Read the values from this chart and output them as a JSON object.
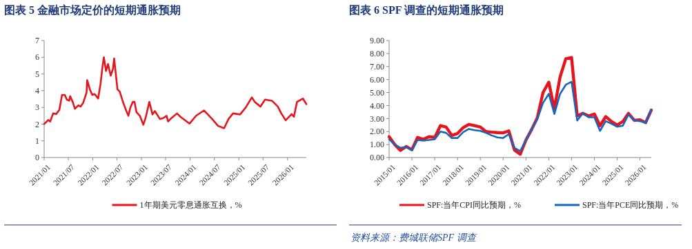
{
  "chart_data": [
    {
      "type": "line",
      "title": "图表 5   金融市场定价的短期通胀预期",
      "legend": "bottom",
      "grid": false,
      "xlim": [
        "2021-01-01",
        "2026-05-22"
      ],
      "xticks": [
        {
          "value": "2021-01",
          "label": "2021/01"
        },
        {
          "value": "2021-07",
          "label": "2021/07"
        },
        {
          "value": "2022-01",
          "label": "2022/01"
        },
        {
          "value": "2022-07",
          "label": "2022/07"
        },
        {
          "value": "2023-01",
          "label": "2023/01"
        },
        {
          "value": "2023-07",
          "label": "2023/07"
        },
        {
          "value": "2024-01",
          "label": "2024/01"
        },
        {
          "value": "2024-07",
          "label": "2024/07"
        },
        {
          "value": "2025-01",
          "label": "2025/01"
        },
        {
          "value": "2025-07",
          "label": "2025/07"
        },
        {
          "value": "2026-01",
          "label": "2026/01"
        }
      ],
      "ylim": [
        0,
        7
      ],
      "yticks": [
        0,
        1,
        2,
        3,
        4,
        5,
        6,
        7
      ],
      "series": [
        {
          "name": "1年期美元零息通胀互换，%",
          "color": "#e8141c",
          "x": [
            "2021-01-01",
            "2021-02-01",
            "2021-02-15",
            "2021-03-10",
            "2021-04-01",
            "2021-04-25",
            "2021-05-15",
            "2021-06-05",
            "2021-06-20",
            "2021-07-08",
            "2021-07-15",
            "2021-08-03",
            "2021-08-20",
            "2021-09-15",
            "2021-10-01",
            "2021-10-20",
            "2021-11-15",
            "2021-11-20",
            "2021-12-10",
            "2021-12-28",
            "2022-01-15",
            "2022-02-10",
            "2022-02-28",
            "2022-03-15",
            "2022-03-25",
            "2022-04-10",
            "2022-04-25",
            "2022-05-15",
            "2022-06-01",
            "2022-06-10",
            "2022-07-05",
            "2022-07-22",
            "2022-08-18",
            "2022-09-10",
            "2022-09-25",
            "2022-10-10",
            "2022-10-28",
            "2022-11-10",
            "2022-11-25",
            "2022-12-20",
            "2023-01-15",
            "2023-02-01",
            "2023-03-01",
            "2023-03-25",
            "2023-04-12",
            "2023-05-20",
            "2023-06-15",
            "2023-07-08",
            "2023-07-20",
            "2023-08-15",
            "2023-09-25",
            "2023-10-20",
            "2023-12-28",
            "2024-02-15",
            "2024-04-15",
            "2024-06-15",
            "2024-07-28",
            "2024-09-12",
            "2024-10-15",
            "2024-11-18",
            "2025-01-10",
            "2025-02-22",
            "2025-04-08",
            "2025-04-30",
            "2025-06-12",
            "2025-07-16",
            "2025-09-06",
            "2025-10-20",
            "2025-11-15",
            "2025-12-18",
            "2026-02-01",
            "2026-02-18",
            "2026-03-13",
            "2026-04-26",
            "2026-05-22"
          ],
          "values": [
            2.0,
            2.25,
            2.15,
            2.65,
            2.6,
            2.85,
            3.75,
            3.75,
            3.47,
            3.4,
            3.67,
            3.33,
            2.92,
            3.12,
            3.05,
            3.26,
            3.88,
            4.63,
            4.08,
            3.75,
            3.8,
            3.53,
            4.42,
            5.45,
            6.0,
            5.18,
            5.6,
            4.9,
            5.3,
            5.93,
            4.08,
            3.95,
            3.26,
            2.78,
            2.5,
            3.0,
            3.33,
            3.33,
            2.71,
            2.5,
            1.96,
            2.37,
            3.33,
            2.58,
            2.78,
            2.3,
            2.37,
            2.5,
            2.16,
            2.37,
            2.64,
            2.44,
            2.03,
            2.5,
            2.82,
            2.3,
            1.9,
            1.75,
            2.3,
            2.64,
            2.58,
            3.0,
            3.6,
            3.33,
            3.05,
            3.47,
            3.4,
            3.05,
            2.64,
            2.23,
            2.6,
            2.44,
            3.33,
            3.53,
            3.2
          ]
        }
      ]
    },
    {
      "type": "line",
      "title": "图表 6   SPF 调查的短期通胀预期",
      "legend": "bottom",
      "grid": false,
      "annotations": [
        "资料来源：费城联储SPF 调查"
      ],
      "xlim": [
        "2015-01-01",
        "2026-07-01"
      ],
      "xticks": [
        {
          "value": "2015-01",
          "label": "2015/01"
        },
        {
          "value": "2016-01",
          "label": "2016/01"
        },
        {
          "value": "2017-01",
          "label": "2017/01"
        },
        {
          "value": "2018-01",
          "label": "2018/01"
        },
        {
          "value": "2019-01",
          "label": "2019/01"
        },
        {
          "value": "2020-01",
          "label": "2020/01"
        },
        {
          "value": "2021-01",
          "label": "2021/01"
        },
        {
          "value": "2022-01",
          "label": "2022/01"
        },
        {
          "value": "2023-01",
          "label": "2023/01"
        },
        {
          "value": "2024-01",
          "label": "2024/01"
        },
        {
          "value": "2025-01",
          "label": "2025/01"
        },
        {
          "value": "2026-01",
          "label": "2026/01"
        }
      ],
      "ylim": [
        0,
        9
      ],
      "yticks": [
        {
          "value": 0,
          "label": "0.00"
        },
        {
          "value": 1,
          "label": "1.00"
        },
        {
          "value": 2,
          "label": "2.00"
        },
        {
          "value": 3,
          "label": "3.00"
        },
        {
          "value": 4,
          "label": "4.00"
        },
        {
          "value": 5,
          "label": "5.00"
        },
        {
          "value": 6,
          "label": "6.00"
        },
        {
          "value": 7,
          "label": "7.00"
        },
        {
          "value": 8,
          "label": "8.00"
        },
        {
          "value": 9,
          "label": "9.00"
        }
      ],
      "x": [
        "2015-01",
        "2015-04",
        "2015-07",
        "2015-10",
        "2016-01",
        "2016-04",
        "2016-07",
        "2016-10",
        "2017-01",
        "2017-04",
        "2017-07",
        "2017-10",
        "2018-01",
        "2018-04",
        "2018-07",
        "2018-10",
        "2019-01",
        "2019-04",
        "2019-07",
        "2019-10",
        "2020-01",
        "2020-04",
        "2020-07",
        "2020-10",
        "2021-01",
        "2021-04",
        "2021-07",
        "2021-10",
        "2022-01",
        "2022-04",
        "2022-07",
        "2022-10",
        "2023-01",
        "2023-04",
        "2023-07",
        "2023-10",
        "2024-01",
        "2024-04",
        "2024-07",
        "2024-10",
        "2025-01",
        "2025-04",
        "2025-07",
        "2025-10",
        "2026-01",
        "2026-04",
        "2026-07"
      ],
      "series": [
        {
          "name": "SPF:当年CPI同比预期，%",
          "color": "#e8141c",
          "values": [
            1.6,
            1.0,
            0.55,
            0.85,
            0.6,
            1.55,
            1.4,
            1.6,
            1.55,
            2.45,
            2.35,
            1.7,
            1.85,
            2.3,
            2.55,
            2.45,
            2.35,
            2.0,
            1.95,
            1.92,
            1.9,
            2.05,
            0.57,
            0.25,
            1.35,
            2.15,
            3.05,
            5.0,
            5.8,
            3.75,
            6.2,
            7.6,
            7.7,
            3.2,
            3.4,
            3.2,
            3.35,
            2.45,
            3.15,
            2.77,
            2.5,
            2.77,
            3.4,
            2.86,
            2.9,
            2.68,
            3.65
          ]
        },
        {
          "name": "SPF:当年PCE同比预期，%",
          "color": "#1565c0",
          "values": [
            1.4,
            1.0,
            0.75,
            0.8,
            0.55,
            1.35,
            1.3,
            1.35,
            1.4,
            2.0,
            1.9,
            1.5,
            1.5,
            1.95,
            2.2,
            2.1,
            2.05,
            1.9,
            1.7,
            1.55,
            1.5,
            1.8,
            0.74,
            0.5,
            1.35,
            2.15,
            2.95,
            4.2,
            4.9,
            3.35,
            4.9,
            5.6,
            5.83,
            2.85,
            3.4,
            3.1,
            3.1,
            2.05,
            2.8,
            2.6,
            2.37,
            2.45,
            3.3,
            2.86,
            2.8,
            2.68,
            3.65
          ]
        }
      ]
    }
  ]
}
